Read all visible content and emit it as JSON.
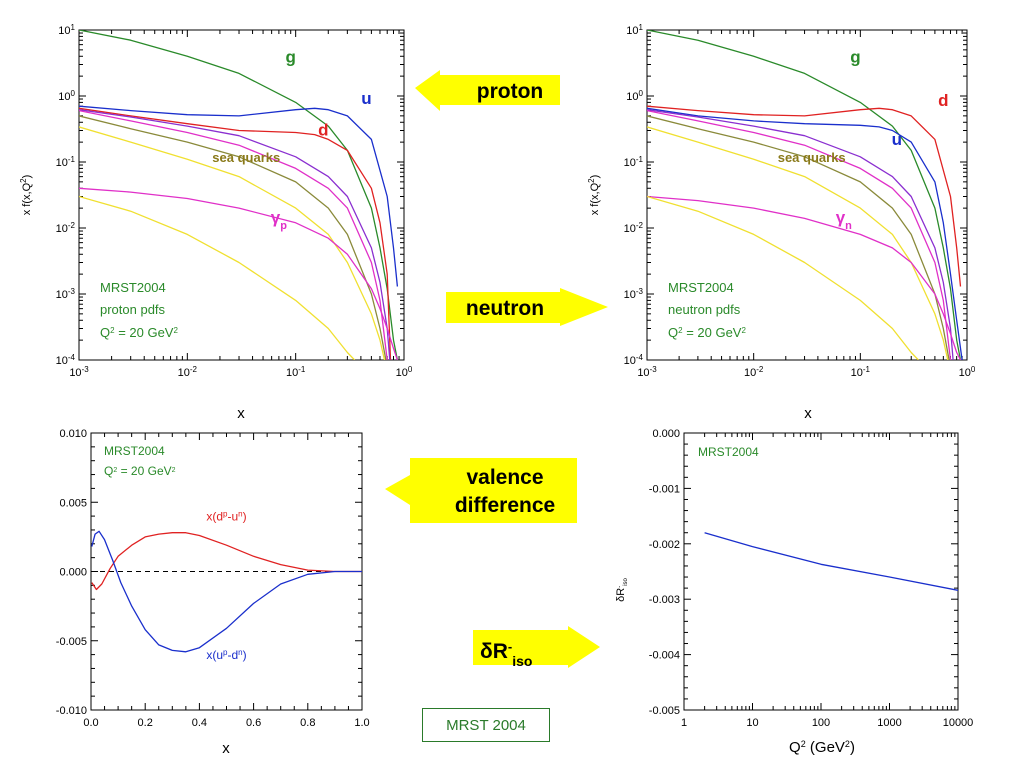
{
  "colors": {
    "gluon": "#2a8a2a",
    "up": "#1a2fcc",
    "down": "#e02222",
    "sea_quarks": "#8a7a1a",
    "photon": "#e030c8",
    "purple": "#8a2fd0",
    "olive": "#8a8a3a",
    "yellow": "#f0e030",
    "orange": "#f0a020",
    "callout_fill": "#ffff00",
    "annotation": "#2a8a2a"
  },
  "callouts": {
    "proton": "proton",
    "neutron": "neutron",
    "valence_line1": "valence",
    "valence_line2": "difference",
    "delta_r": "δR",
    "delta_r_sup": "-",
    "delta_r_sub": "iso"
  },
  "footer": {
    "label": "MRST 2004"
  },
  "chart_data": [
    {
      "type": "line",
      "panel": "proton",
      "xscale": "log",
      "yscale": "log",
      "xlim": [
        0.001,
        1
      ],
      "ylim": [
        0.0001,
        10
      ],
      "xlabel": "x",
      "ylabel": "x f(x,Q²)",
      "xticks": [
        {
          "v": 0.001,
          "b": "10",
          "e": "-3"
        },
        {
          "v": 0.01,
          "b": "10",
          "e": "-2"
        },
        {
          "v": 0.1,
          "b": "10",
          "e": "-1"
        },
        {
          "v": 1,
          "b": "10",
          "e": "0"
        }
      ],
      "yticks": [
        {
          "v": 0.0001,
          "b": "10",
          "e": "-4"
        },
        {
          "v": 0.001,
          "b": "10",
          "e": "-3"
        },
        {
          "v": 0.01,
          "b": "10",
          "e": "-2"
        },
        {
          "v": 0.1,
          "b": "10",
          "e": "-1"
        },
        {
          "v": 1,
          "b": "10",
          "e": "0"
        },
        {
          "v": 10,
          "b": "10",
          "e": "1"
        }
      ],
      "annotation": {
        "line1": "MRST2004",
        "line2": "proton pdfs",
        "q2": "Q",
        "q2_tail": " = 20 GeV"
      },
      "series": [
        {
          "name": "g",
          "color": "gluon",
          "x": [
            0.001,
            0.003,
            0.01,
            0.03,
            0.1,
            0.2,
            0.3,
            0.5,
            0.6,
            0.7,
            0.8,
            0.87
          ],
          "y": [
            10,
            7,
            4,
            2.2,
            0.8,
            0.35,
            0.15,
            0.02,
            0.005,
            0.0012,
            0.0002,
            0.0001
          ]
        },
        {
          "name": "u",
          "color": "up",
          "x": [
            0.001,
            0.003,
            0.01,
            0.03,
            0.1,
            0.15,
            0.2,
            0.3,
            0.5,
            0.7,
            0.8,
            0.87
          ],
          "y": [
            0.7,
            0.6,
            0.52,
            0.5,
            0.62,
            0.65,
            0.62,
            0.5,
            0.22,
            0.03,
            0.005,
            0.0013
          ]
        },
        {
          "name": "d",
          "color": "down",
          "x": [
            0.001,
            0.003,
            0.01,
            0.03,
            0.1,
            0.15,
            0.2,
            0.3,
            0.5,
            0.6,
            0.7,
            0.75
          ],
          "y": [
            0.65,
            0.5,
            0.38,
            0.3,
            0.28,
            0.26,
            0.22,
            0.15,
            0.04,
            0.012,
            0.002,
            0.0001
          ]
        },
        {
          "name": "",
          "color": "purple",
          "x": [
            0.001,
            0.003,
            0.01,
            0.03,
            0.1,
            0.2,
            0.3,
            0.5,
            0.6,
            0.7,
            0.74
          ],
          "y": [
            0.62,
            0.48,
            0.35,
            0.25,
            0.12,
            0.06,
            0.03,
            0.005,
            0.0015,
            0.0003,
            0.0001
          ]
        },
        {
          "name": "",
          "color": "photon",
          "x": [
            0.001,
            0.003,
            0.01,
            0.03,
            0.1,
            0.2,
            0.3,
            0.5,
            0.6,
            0.7
          ],
          "y": [
            0.6,
            0.42,
            0.28,
            0.18,
            0.08,
            0.04,
            0.02,
            0.003,
            0.0008,
            0.0001
          ]
        },
        {
          "name": "",
          "color": "olive",
          "x": [
            0.001,
            0.003,
            0.01,
            0.03,
            0.1,
            0.2,
            0.3,
            0.5,
            0.6,
            0.68
          ],
          "y": [
            0.5,
            0.32,
            0.2,
            0.12,
            0.05,
            0.02,
            0.008,
            0.001,
            0.0003,
            0.0001
          ]
        },
        {
          "name": "",
          "color": "yellow",
          "x": [
            0.001,
            0.003,
            0.01,
            0.03,
            0.1,
            0.2,
            0.3,
            0.5,
            0.6,
            0.66
          ],
          "y": [
            0.34,
            0.2,
            0.11,
            0.06,
            0.02,
            0.008,
            0.003,
            0.0005,
            0.0002,
            0.0001
          ]
        },
        {
          "name": "γp",
          "color": "photon",
          "x": [
            0.001,
            0.003,
            0.01,
            0.03,
            0.1,
            0.2,
            0.3,
            0.5,
            0.6,
            0.7,
            0.8,
            0.87
          ],
          "y": [
            0.04,
            0.035,
            0.028,
            0.02,
            0.012,
            0.007,
            0.004,
            0.0012,
            0.0006,
            0.0003,
            0.00015,
            0.0001
          ]
        },
        {
          "name": "",
          "color": "yellow",
          "x": [
            0.001,
            0.003,
            0.01,
            0.03,
            0.1,
            0.2,
            0.3,
            0.35
          ],
          "y": [
            0.03,
            0.018,
            0.008,
            0.003,
            0.0008,
            0.0003,
            0.00013,
            0.0001
          ]
        }
      ],
      "labels": [
        {
          "text": "g",
          "color": "gluon",
          "x": 0.09,
          "y": 3.2
        },
        {
          "text": "u",
          "color": "up",
          "x": 0.45,
          "y": 0.75
        },
        {
          "text": "d",
          "color": "down",
          "x": 0.18,
          "y": 0.25
        },
        {
          "text": "sea quarks",
          "color": "sea_quarks",
          "x": 0.035,
          "y": 0.1,
          "small": true
        },
        {
          "text": "γ",
          "sub": "p",
          "color": "photon",
          "x": 0.07,
          "y": 0.012
        }
      ]
    },
    {
      "type": "line",
      "panel": "neutron",
      "xscale": "log",
      "yscale": "log",
      "xlim": [
        0.001,
        1
      ],
      "ylim": [
        0.0001,
        10
      ],
      "xlabel": "x",
      "ylabel": "x f(x,Q²)",
      "xticks": [
        {
          "v": 0.001,
          "b": "10",
          "e": "-3"
        },
        {
          "v": 0.01,
          "b": "10",
          "e": "-2"
        },
        {
          "v": 0.1,
          "b": "10",
          "e": "-1"
        },
        {
          "v": 1,
          "b": "10",
          "e": "0"
        }
      ],
      "yticks": [
        {
          "v": 0.0001,
          "b": "10",
          "e": "-4"
        },
        {
          "v": 0.001,
          "b": "10",
          "e": "-3"
        },
        {
          "v": 0.01,
          "b": "10",
          "e": "-2"
        },
        {
          "v": 0.1,
          "b": "10",
          "e": "-1"
        },
        {
          "v": 1,
          "b": "10",
          "e": "0"
        },
        {
          "v": 10,
          "b": "10",
          "e": "1"
        }
      ],
      "annotation": {
        "line1": "MRST2004",
        "line2": "neutron pdfs",
        "q2": "Q",
        "q2_tail": " = 20 GeV"
      },
      "series": [
        {
          "name": "g",
          "color": "gluon",
          "x": [
            0.001,
            0.003,
            0.01,
            0.03,
            0.1,
            0.2,
            0.3,
            0.5,
            0.6,
            0.7,
            0.8,
            0.87
          ],
          "y": [
            10,
            7,
            4,
            2.2,
            0.8,
            0.35,
            0.15,
            0.02,
            0.005,
            0.0012,
            0.0002,
            0.0001
          ]
        },
        {
          "name": "d",
          "color": "down",
          "x": [
            0.001,
            0.003,
            0.01,
            0.03,
            0.1,
            0.15,
            0.2,
            0.3,
            0.5,
            0.7,
            0.8,
            0.87
          ],
          "y": [
            0.7,
            0.6,
            0.52,
            0.5,
            0.62,
            0.65,
            0.62,
            0.5,
            0.22,
            0.03,
            0.005,
            0.0013
          ]
        },
        {
          "name": "u",
          "color": "up",
          "x": [
            0.001,
            0.003,
            0.01,
            0.03,
            0.1,
            0.15,
            0.2,
            0.3,
            0.5,
            0.6,
            0.7,
            0.8,
            0.9
          ],
          "y": [
            0.65,
            0.5,
            0.42,
            0.38,
            0.36,
            0.34,
            0.3,
            0.2,
            0.05,
            0.012,
            0.002,
            0.0004,
            0.0001
          ]
        },
        {
          "name": "",
          "color": "purple",
          "x": [
            0.001,
            0.003,
            0.01,
            0.03,
            0.1,
            0.2,
            0.3,
            0.5,
            0.6,
            0.7,
            0.74
          ],
          "y": [
            0.62,
            0.48,
            0.35,
            0.25,
            0.12,
            0.06,
            0.03,
            0.005,
            0.0015,
            0.0003,
            0.0001
          ]
        },
        {
          "name": "",
          "color": "photon",
          "x": [
            0.001,
            0.003,
            0.01,
            0.03,
            0.1,
            0.2,
            0.3,
            0.5,
            0.6,
            0.7
          ],
          "y": [
            0.6,
            0.42,
            0.28,
            0.18,
            0.08,
            0.04,
            0.02,
            0.003,
            0.0008,
            0.0001
          ]
        },
        {
          "name": "",
          "color": "olive",
          "x": [
            0.001,
            0.003,
            0.01,
            0.03,
            0.1,
            0.2,
            0.3,
            0.5,
            0.6,
            0.68
          ],
          "y": [
            0.5,
            0.32,
            0.2,
            0.12,
            0.05,
            0.02,
            0.008,
            0.001,
            0.0003,
            0.0001
          ]
        },
        {
          "name": "",
          "color": "yellow",
          "x": [
            0.001,
            0.003,
            0.01,
            0.03,
            0.1,
            0.2,
            0.3,
            0.5,
            0.6,
            0.66
          ],
          "y": [
            0.34,
            0.2,
            0.11,
            0.06,
            0.02,
            0.008,
            0.003,
            0.0005,
            0.0002,
            0.0001
          ]
        },
        {
          "name": "γn",
          "color": "photon",
          "x": [
            0.001,
            0.003,
            0.01,
            0.03,
            0.1,
            0.2,
            0.3,
            0.5,
            0.6,
            0.7,
            0.8,
            0.87
          ],
          "y": [
            0.03,
            0.026,
            0.02,
            0.014,
            0.008,
            0.005,
            0.003,
            0.001,
            0.0005,
            0.00025,
            0.00013,
            0.0001
          ]
        },
        {
          "name": "",
          "color": "yellow",
          "x": [
            0.001,
            0.003,
            0.01,
            0.03,
            0.1,
            0.2,
            0.3,
            0.35
          ],
          "y": [
            0.03,
            0.018,
            0.008,
            0.003,
            0.0008,
            0.0003,
            0.00013,
            0.0001
          ]
        }
      ],
      "labels": [
        {
          "text": "g",
          "color": "gluon",
          "x": 0.09,
          "y": 3.2
        },
        {
          "text": "d",
          "color": "down",
          "x": 0.6,
          "y": 0.7
        },
        {
          "text": "u",
          "color": "up",
          "x": 0.22,
          "y": 0.18
        },
        {
          "text": "sea quarks",
          "color": "sea_quarks",
          "x": 0.035,
          "y": 0.1,
          "small": true
        },
        {
          "text": "γ",
          "sub": "n",
          "color": "photon",
          "x": 0.07,
          "y": 0.012
        }
      ]
    },
    {
      "type": "line",
      "panel": "valence",
      "xscale": "linear",
      "yscale": "linear",
      "xlim": [
        0,
        1
      ],
      "ylim": [
        -0.01,
        0.01
      ],
      "xlabel": "x",
      "ylabel": "",
      "xticks": [
        {
          "v": 0,
          "t": "0.0"
        },
        {
          "v": 0.2,
          "t": "0.2"
        },
        {
          "v": 0.4,
          "t": "0.4"
        },
        {
          "v": 0.6,
          "t": "0.6"
        },
        {
          "v": 0.8,
          "t": "0.8"
        },
        {
          "v": 1,
          "t": "1.0"
        }
      ],
      "yticks": [
        {
          "v": -0.01,
          "t": "-0.010"
        },
        {
          "v": -0.005,
          "t": "-0.005"
        },
        {
          "v": 0,
          "t": "0.000"
        },
        {
          "v": 0.005,
          "t": "0.005"
        },
        {
          "v": 0.01,
          "t": "0.010"
        }
      ],
      "annotation": {
        "line1": "MRST2004",
        "q2": "Q",
        "q2_tail": " = 20 GeV"
      },
      "series": [
        {
          "name": "x(dp-un)",
          "color": "down",
          "x": [
            0.003,
            0.02,
            0.04,
            0.07,
            0.1,
            0.15,
            0.2,
            0.25,
            0.3,
            0.35,
            0.4,
            0.5,
            0.6,
            0.7,
            0.8,
            0.9,
            1.0
          ],
          "y": [
            -0.0008,
            -0.0013,
            -0.0009,
            0.0002,
            0.0011,
            0.0019,
            0.0025,
            0.0027,
            0.0028,
            0.0028,
            0.0026,
            0.0019,
            0.0011,
            0.0005,
            0.0001,
            0.0,
            0.0
          ]
        },
        {
          "name": "x(up-dn)",
          "color": "up",
          "x": [
            0.003,
            0.015,
            0.03,
            0.05,
            0.08,
            0.11,
            0.15,
            0.2,
            0.25,
            0.3,
            0.35,
            0.4,
            0.5,
            0.6,
            0.7,
            0.8,
            0.9,
            1.0
          ],
          "y": [
            0.0018,
            0.0027,
            0.0029,
            0.0023,
            0.0008,
            -0.0008,
            -0.0025,
            -0.0042,
            -0.0053,
            -0.0057,
            -0.0058,
            -0.0055,
            -0.0041,
            -0.0023,
            -0.0009,
            -0.0002,
            0.0,
            0.0
          ]
        }
      ],
      "labels": [
        {
          "text": "x(d",
          "sup1": "p",
          "mid": "-u",
          "sup2": "n",
          "tail": ")",
          "color": "down",
          "x": 0.5,
          "y": 0.0037
        },
        {
          "text": "x(u",
          "sup1": "p",
          "mid": "-d",
          "sup2": "n",
          "tail": ")",
          "color": "up",
          "x": 0.5,
          "y": -0.0063
        }
      ]
    },
    {
      "type": "line",
      "panel": "delta_r",
      "xscale": "log",
      "yscale": "linear",
      "xlim": [
        1,
        10000
      ],
      "ylim": [
        -0.005,
        0
      ],
      "xlabel": "Q",
      "xlabel_tail": "  (GeV",
      "ylabel": "δR",
      "xticks": [
        {
          "v": 1,
          "t": "1"
        },
        {
          "v": 10,
          "t": "10"
        },
        {
          "v": 100,
          "t": "100"
        },
        {
          "v": 1000,
          "t": "1000"
        },
        {
          "v": 10000,
          "t": "10000"
        }
      ],
      "yticks": [
        {
          "v": -0.005,
          "t": "-0.005"
        },
        {
          "v": -0.004,
          "t": "-0.004"
        },
        {
          "v": -0.003,
          "t": "-0.003"
        },
        {
          "v": -0.002,
          "t": "-0.002"
        },
        {
          "v": -0.001,
          "t": "-0.001"
        },
        {
          "v": 0,
          "t": "0.000"
        }
      ],
      "annotation": {
        "line1": "MRST2004"
      },
      "series": [
        {
          "name": "",
          "color": "up",
          "x": [
            2,
            10,
            100,
            1000,
            10000
          ],
          "y": [
            -0.0018,
            -0.00205,
            -0.00237,
            -0.0026,
            -0.00284
          ]
        }
      ],
      "labels": []
    }
  ]
}
